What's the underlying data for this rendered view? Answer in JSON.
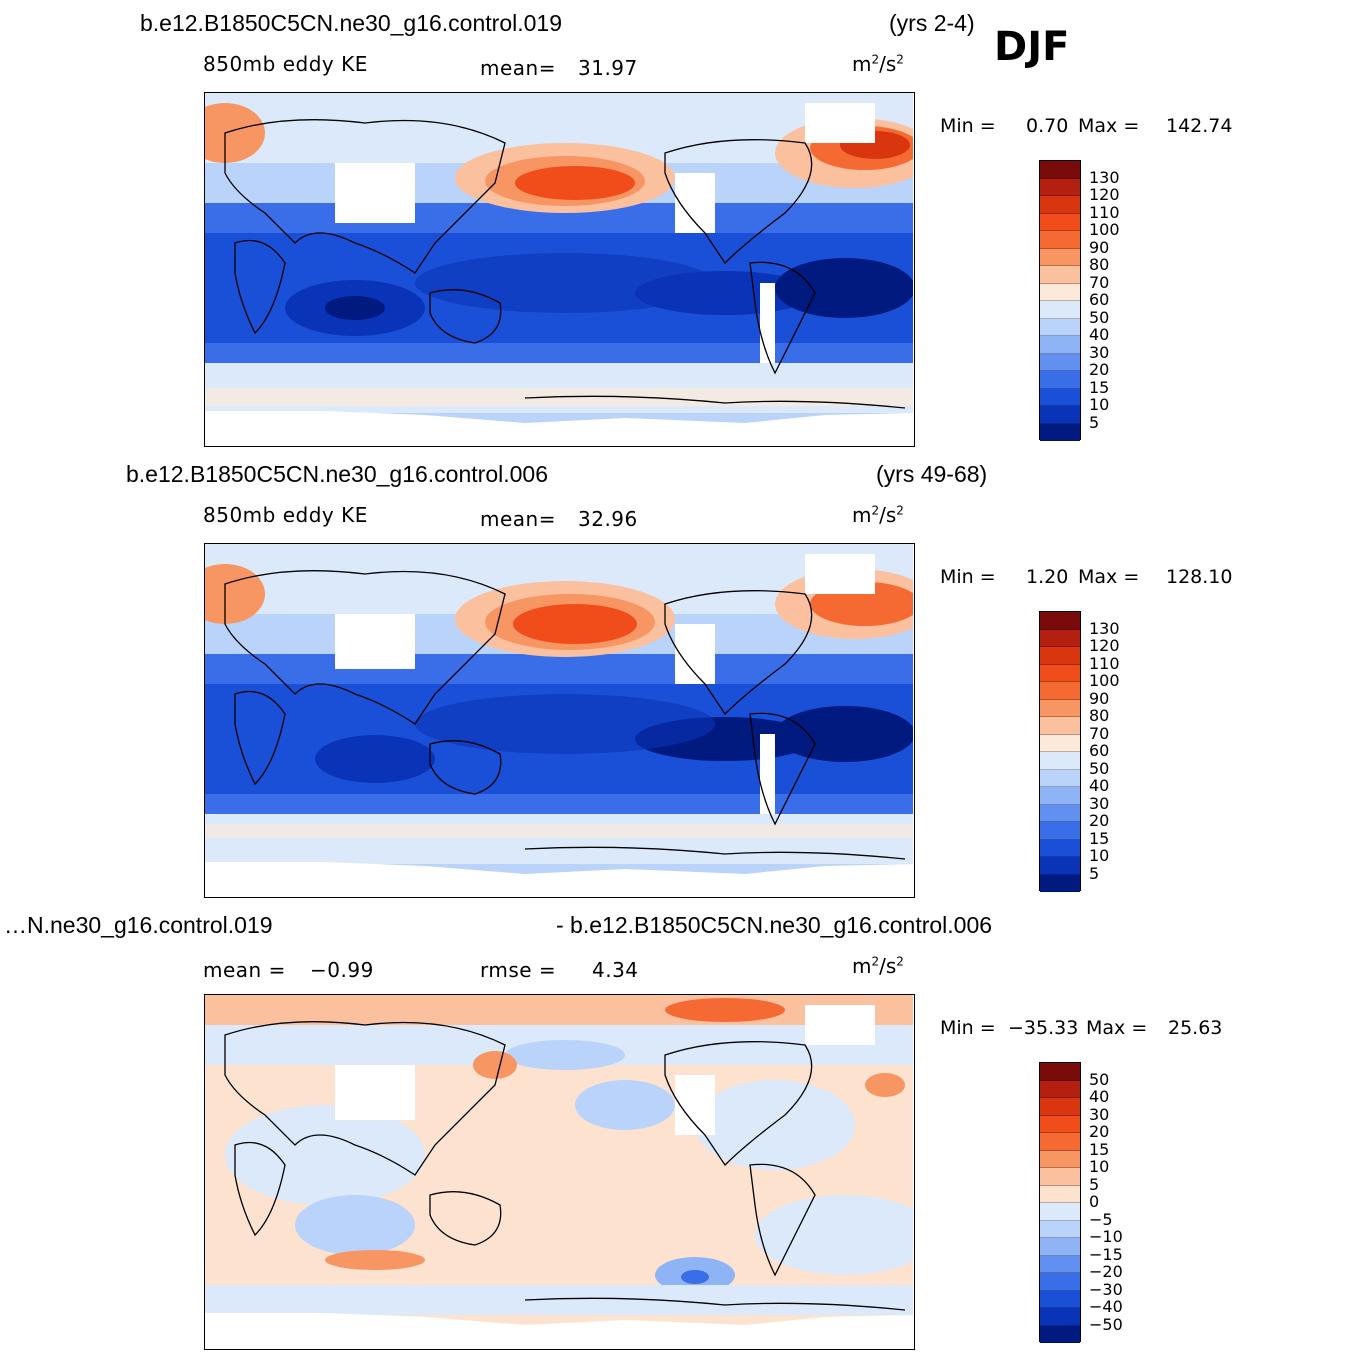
{
  "season": "DJF",
  "panels": [
    {
      "case_name": "b.e12.B1850C5CN.ne30_g16.control.019",
      "years": "(yrs 2-4)",
      "variable": "850mb  eddy  KE",
      "stat1_label": "mean=",
      "stat1_value": "31.97",
      "units_base": "m",
      "units_exp1": "2",
      "units_mid": "/s",
      "units_exp2": "2",
      "min_label": "Min  =",
      "min_value": "0.70",
      "max_label": "Max  =",
      "max_value": "142.74",
      "colorbar_labels": [
        "130",
        "120",
        "110",
        "100",
        "90",
        "80",
        "70",
        "60",
        "50",
        "40",
        "30",
        "20",
        "15",
        "10",
        "5"
      ]
    },
    {
      "case_name": "b.e12.B1850C5CN.ne30_g16.control.006",
      "years": "(yrs 49-68)",
      "variable": "850mb  eddy  KE",
      "stat1_label": "mean=",
      "stat1_value": "32.96",
      "units_base": "m",
      "units_exp1": "2",
      "units_mid": "/s",
      "units_exp2": "2",
      "min_label": "Min  =",
      "min_value": "1.20",
      "max_label": "Max  =",
      "max_value": "128.10",
      "colorbar_labels": [
        "130",
        "120",
        "110",
        "100",
        "90",
        "80",
        "70",
        "60",
        "50",
        "40",
        "30",
        "20",
        "15",
        "10",
        "5"
      ]
    },
    {
      "case_left": "…N.ne30_g16.control.019",
      "case_right": "- b.e12.B1850C5CN.ne30_g16.control.006",
      "stat1_label": "mean  =",
      "stat1_value": "−0.99",
      "stat2_label": "rmse  =",
      "stat2_value": "4.34",
      "units_base": "m",
      "units_exp1": "2",
      "units_mid": "/s",
      "units_exp2": "2",
      "min_label": "Min  =",
      "min_value": "−35.33",
      "max_label": "Max  =",
      "max_value": "25.63",
      "colorbar_labels": [
        "50",
        "40",
        "30",
        "20",
        "15",
        "10",
        "5",
        "0",
        "−5",
        "−10",
        "−15",
        "−20",
        "−30",
        "−40",
        "−50"
      ]
    }
  ],
  "colors": {
    "abs_scale": [
      "#7a0b0b",
      "#b3200f",
      "#d9360f",
      "#f04d1a",
      "#f56a33",
      "#f79563",
      "#fbc19e",
      "#fde9d9",
      "#dbe9fb",
      "#b9d3fb",
      "#8fb4f6",
      "#6290f0",
      "#3a6ee8",
      "#1a50d8",
      "#0a34b8",
      "#001a80"
    ],
    "diff_scale": [
      "#7a0b0b",
      "#b3200f",
      "#d9360f",
      "#f04d1a",
      "#f56a33",
      "#f79563",
      "#fbc19e",
      "#fde3cf",
      "#dbe9fb",
      "#b9d3fb",
      "#8fb4f6",
      "#6290f0",
      "#3a6ee8",
      "#1a50d8",
      "#0a34b8",
      "#001a80"
    ]
  }
}
